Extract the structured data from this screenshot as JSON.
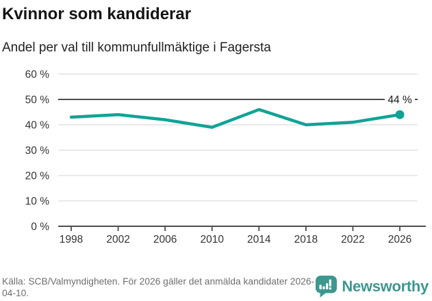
{
  "header": {
    "title": "Kvinnor som kandiderar",
    "subtitle": "Andel per val till kommunfullmäktige i Fagersta"
  },
  "chart_data": {
    "type": "line",
    "title": "Kvinnor som kandiderar",
    "subtitle": "Andel per val till kommunfullmäktige i Fagersta",
    "x": [
      1998,
      2002,
      2006,
      2010,
      2014,
      2018,
      2022,
      2026
    ],
    "values": [
      43,
      44,
      42,
      39,
      46,
      40,
      41,
      44
    ],
    "unit": "%",
    "ylim": [
      0,
      60
    ],
    "yticks": [
      0,
      10,
      20,
      30,
      40,
      50,
      60
    ],
    "ytick_labels": [
      "0 %",
      "10 %",
      "20 %",
      "30 %",
      "40 %",
      "50 %",
      "60 %"
    ],
    "xtick_labels": [
      "1998",
      "2002",
      "2006",
      "2010",
      "2014",
      "2018",
      "2022",
      "2026"
    ],
    "reference_line": 50,
    "end_label": "44 %",
    "grid": true,
    "legend": "none",
    "line_color": "#10a396",
    "grid_color": "#dcdcdc",
    "axis_color": "#4d4d4d",
    "tick_label_color": "#333333",
    "end_label_color": "#1a1a1a"
  },
  "footer": {
    "source": "Källa: SCB/Valmyndigheten. För 2026 gäller det anmälda kandidater 2026-04-10.",
    "logo_text": "Newsworthy",
    "logo_color": "#3d978f"
  }
}
